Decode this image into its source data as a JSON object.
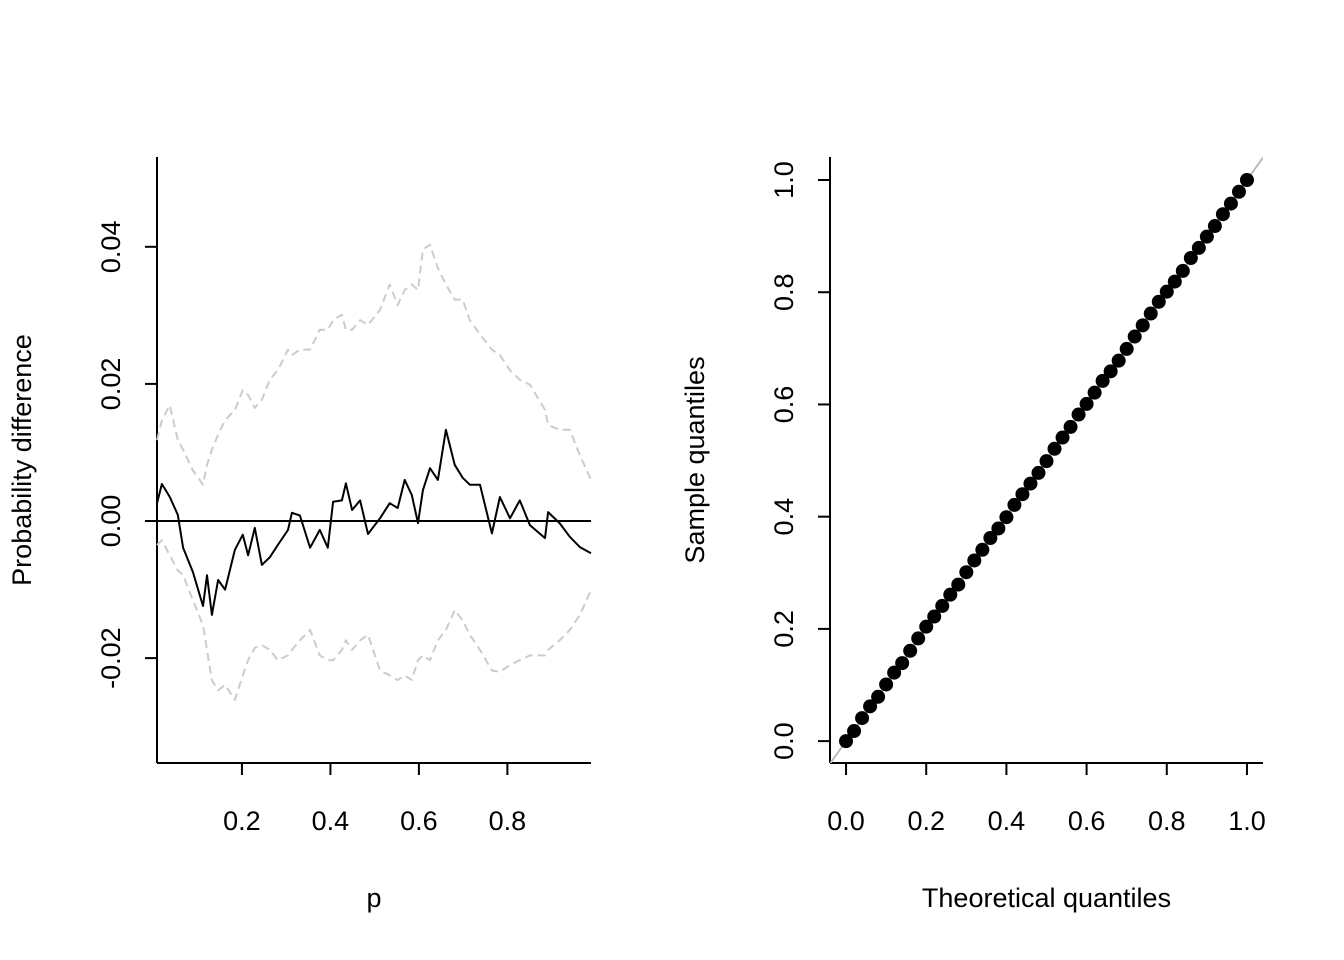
{
  "chart_data": [
    {
      "type": "line",
      "x_label": "p",
      "y_label": "Probability difference",
      "xlim": [
        0.008,
        0.989
      ],
      "ylim": [
        -0.0353,
        0.0531
      ],
      "xticks": [
        0.2,
        0.4,
        0.6,
        0.8
      ],
      "yticks": [
        -0.02,
        {
          "value": 0,
          "label": "0.00"
        },
        0.02,
        0.04
      ],
      "hline": 0,
      "x": [
        0.008,
        0.019,
        0.037,
        0.055,
        0.067,
        0.089,
        0.112,
        0.121,
        0.132,
        0.146,
        0.162,
        0.184,
        0.202,
        0.214,
        0.229,
        0.245,
        0.263,
        0.281,
        0.304,
        0.313,
        0.331,
        0.354,
        0.376,
        0.394,
        0.406,
        0.426,
        0.435,
        0.449,
        0.467,
        0.485,
        0.512,
        0.534,
        0.552,
        0.568,
        0.584,
        0.598,
        0.609,
        0.625,
        0.643,
        0.661,
        0.681,
        0.699,
        0.715,
        0.738,
        0.765,
        0.783,
        0.806,
        0.828,
        0.851,
        0.885,
        0.892,
        0.918,
        0.941,
        0.964,
        0.989
      ],
      "series": [
        {
          "color": "#000000",
          "dashed": false,
          "values": [
            0.0026,
            0.0054,
            0.0035,
            0.0009,
            -0.0039,
            -0.0074,
            -0.0124,
            -0.0079,
            -0.0137,
            -0.0086,
            -0.01,
            -0.0042,
            -0.002,
            -0.005,
            -0.001,
            -0.0064,
            -0.0053,
            -0.0035,
            -0.0013,
            0.0012,
            0.0008,
            -0.0039,
            -0.0013,
            -0.0039,
            0.0028,
            0.003,
            0.0055,
            0.0016,
            0.003,
            -0.0019,
            0.0004,
            0.0026,
            0.0019,
            0.006,
            0.0038,
            -0.0003,
            0.0045,
            0.0077,
            0.006,
            0.0133,
            0.0082,
            0.0063,
            0.0053,
            0.0053,
            -0.0018,
            0.0035,
            0.0004,
            0.003,
            -0.0006,
            -0.0025,
            0.0013,
            -0.0003,
            -0.0023,
            -0.0038,
            -0.0047
          ]
        },
        {
          "color": "#cccccc",
          "dashed": true,
          "values": [
            0.0118,
            0.0147,
            0.0169,
            0.0118,
            0.0104,
            0.0074,
            0.0053,
            0.0082,
            0.0104,
            0.0126,
            0.0147,
            0.0162,
            0.0191,
            0.0184,
            0.0165,
            0.0177,
            0.0206,
            0.022,
            0.025,
            0.0242,
            0.025,
            0.025,
            0.0279,
            0.0279,
            0.0293,
            0.0301,
            0.0279,
            0.0279,
            0.0293,
            0.0286,
            0.0308,
            0.0345,
            0.0315,
            0.0337,
            0.0345,
            0.0337,
            0.0396,
            0.0403,
            0.0369,
            0.0345,
            0.0323,
            0.0323,
            0.0293,
            0.0272,
            0.025,
            0.0242,
            0.022,
            0.0206,
            0.0199,
            0.0162,
            0.014,
            0.0133,
            0.0133,
            0.0096,
            0.006
          ]
        },
        {
          "color": "#cccccc",
          "dashed": true,
          "values": [
            -0.0035,
            -0.0028,
            -0.005,
            -0.0072,
            -0.0079,
            -0.0115,
            -0.0152,
            -0.0188,
            -0.0232,
            -0.0247,
            -0.0239,
            -0.0261,
            -0.0225,
            -0.0203,
            -0.0185,
            -0.0181,
            -0.0188,
            -0.0203,
            -0.0196,
            -0.0188,
            -0.0174,
            -0.0159,
            -0.0196,
            -0.0203,
            -0.0203,
            -0.0188,
            -0.0174,
            -0.0188,
            -0.0174,
            -0.0166,
            -0.0218,
            -0.0225,
            -0.0232,
            -0.0225,
            -0.0232,
            -0.0203,
            -0.0196,
            -0.0203,
            -0.0174,
            -0.0159,
            -0.013,
            -0.0145,
            -0.0166,
            -0.0188,
            -0.0218,
            -0.022,
            -0.021,
            -0.0203,
            -0.0196,
            -0.0196,
            -0.0188,
            -0.0174,
            -0.0159,
            -0.0137,
            -0.0101
          ]
        }
      ]
    },
    {
      "type": "scatter",
      "x_label": "Theoretical quantiles",
      "y_label": "Sample quantiles",
      "xlim": [
        -0.04,
        1.04
      ],
      "ylim": [
        -0.039,
        1.041
      ],
      "xticks": [
        {
          "value": 0,
          "label": "0.0"
        },
        0.2,
        0.4,
        0.6,
        0.8,
        {
          "value": 1,
          "label": "1.0"
        }
      ],
      "yticks": [
        {
          "value": 0,
          "label": "0.0"
        },
        0.2,
        0.4,
        0.6,
        0.8,
        {
          "value": 1,
          "label": "1.0"
        }
      ],
      "color": "#000000",
      "line_color": "#bbbbbb",
      "reference_line": {
        "intercept": 0,
        "slope": 1
      },
      "x": [
        0,
        0.02,
        0.04,
        0.06,
        0.08,
        0.1,
        0.12,
        0.14,
        0.16,
        0.18,
        0.2,
        0.22,
        0.24,
        0.26,
        0.28,
        0.3,
        0.32,
        0.34,
        0.36,
        0.38,
        0.4,
        0.42,
        0.44,
        0.46,
        0.48,
        0.5,
        0.52,
        0.54,
        0.56,
        0.58,
        0.6,
        0.62,
        0.64,
        0.66,
        0.68,
        0.7,
        0.72,
        0.74,
        0.76,
        0.78,
        0.8,
        0.82,
        0.84,
        0.86,
        0.88,
        0.9,
        0.92,
        0.94,
        0.96,
        0.98,
        1
      ],
      "y": [
        0,
        0.018,
        0.041,
        0.062,
        0.079,
        0.101,
        0.122,
        0.139,
        0.161,
        0.183,
        0.204,
        0.222,
        0.241,
        0.261,
        0.279,
        0.301,
        0.322,
        0.341,
        0.362,
        0.379,
        0.399,
        0.421,
        0.44,
        0.459,
        0.478,
        0.499,
        0.521,
        0.541,
        0.56,
        0.582,
        0.601,
        0.621,
        0.642,
        0.659,
        0.678,
        0.699,
        0.721,
        0.741,
        0.762,
        0.783,
        0.801,
        0.819,
        0.838,
        0.861,
        0.879,
        0.899,
        0.918,
        0.939,
        0.958,
        0.979,
        1.0
      ]
    }
  ]
}
